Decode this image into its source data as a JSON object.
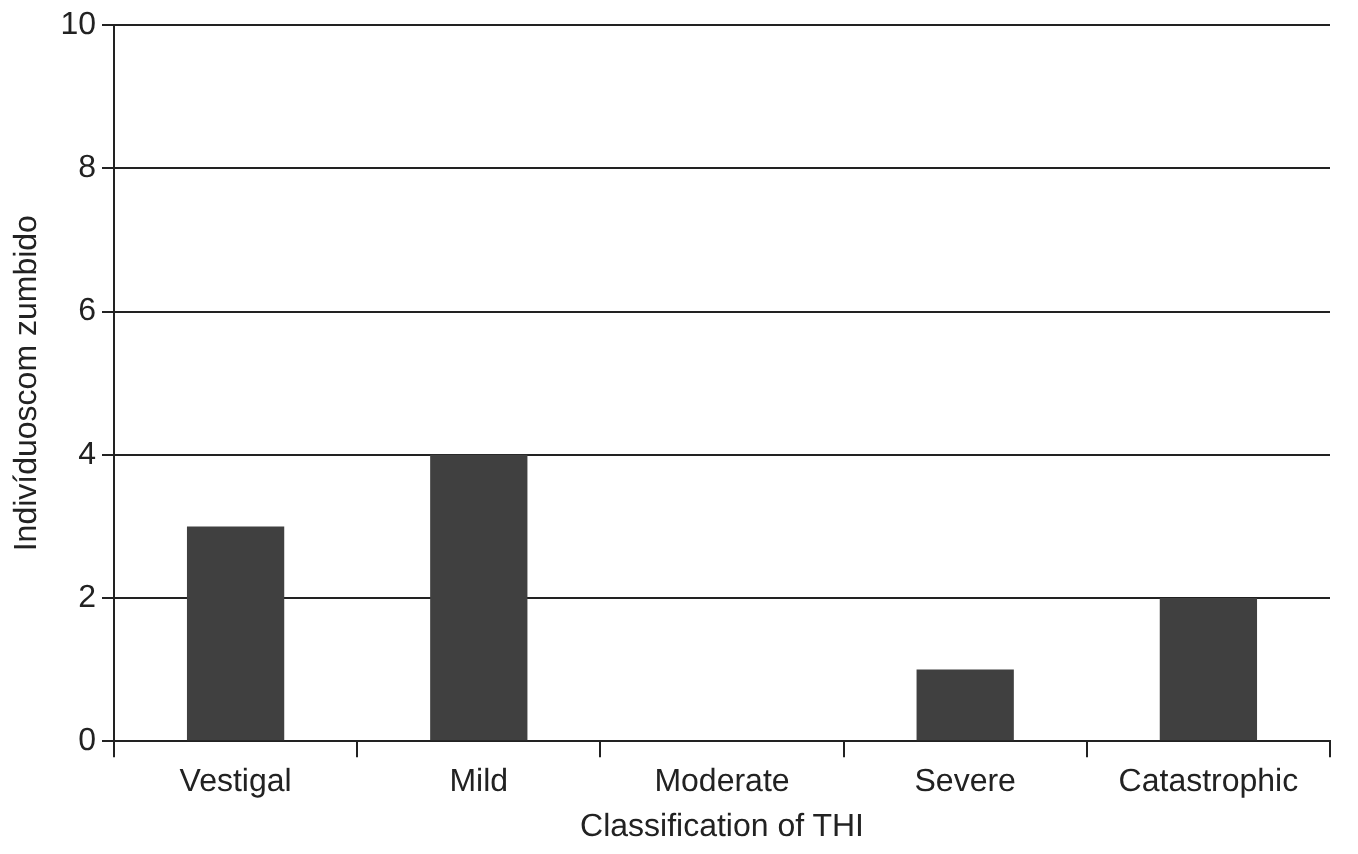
{
  "chart_data": {
    "type": "bar",
    "xlabel": "Classification of THI",
    "ylabel": "Indivíduoscom zumbido",
    "categories": [
      "Vestigal",
      "Mild",
      "Moderate",
      "Severe",
      "Catastrophic"
    ],
    "values": [
      3,
      4,
      0,
      1,
      2
    ],
    "color": "#404040",
    "ylim": [
      0,
      10
    ],
    "yticks": [
      0,
      2,
      4,
      6,
      8,
      10
    ],
    "grid": "y"
  }
}
